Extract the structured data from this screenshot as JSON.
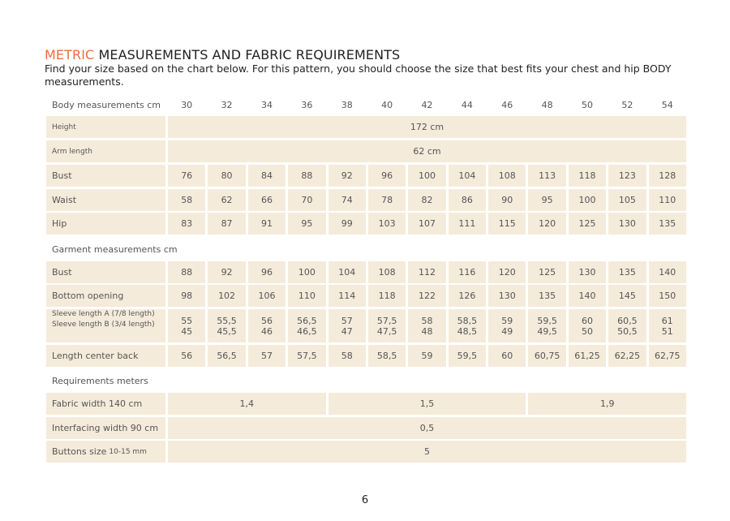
{
  "title": {
    "accent": "METRIC",
    "rest": " MEASUREMENTS AND FABRIC REQUIREMENTS"
  },
  "intro": "Find your size based on the chart below. For this pattern, you should choose the size that best fits your chest and hip BODY measurements.",
  "sizes": [
    "30",
    "32",
    "34",
    "36",
    "38",
    "40",
    "42",
    "44",
    "46",
    "48",
    "50",
    "52",
    "54"
  ],
  "sections": {
    "body": "Body measurements cm",
    "garment": "Garment measurements cm",
    "requirements": "Requirements meters"
  },
  "body_rows": [
    {
      "label": "Height",
      "span": "172 cm"
    },
    {
      "label": "Arm length",
      "span": "62 cm"
    },
    {
      "label": "Bust",
      "values": [
        "76",
        "80",
        "84",
        "88",
        "92",
        "96",
        "100",
        "104",
        "108",
        "113",
        "118",
        "123",
        "128"
      ]
    },
    {
      "label": "Waist",
      "values": [
        "58",
        "62",
        "66",
        "70",
        "74",
        "78",
        "82",
        "86",
        "90",
        "95",
        "100",
        "105",
        "110"
      ]
    },
    {
      "label": "Hip",
      "values": [
        "83",
        "87",
        "91",
        "95",
        "99",
        "103",
        "107",
        "111",
        "115",
        "120",
        "125",
        "130",
        "135"
      ]
    }
  ],
  "garment_rows": [
    {
      "label": "Bust",
      "values": [
        "88",
        "92",
        "96",
        "100",
        "104",
        "108",
        "112",
        "116",
        "120",
        "125",
        "130",
        "135",
        "140"
      ]
    },
    {
      "label": "Bottom opening",
      "values": [
        "98",
        "102",
        "106",
        "110",
        "114",
        "118",
        "122",
        "126",
        "130",
        "135",
        "140",
        "145",
        "150"
      ]
    },
    {
      "label": "Sleeve length  A (7/8 length)",
      "label2": "Sleeve length B (3/4 length)",
      "values": [
        "55",
        "55,5",
        "56",
        "56,5",
        "57",
        "57,5",
        "58",
        "58,5",
        "59",
        "59,5",
        "60",
        "60,5",
        "61"
      ],
      "values2": [
        "45",
        "45,5",
        "46",
        "46,5",
        "47",
        "47,5",
        "48",
        "48,5",
        "49",
        "49,5",
        "50",
        "50,5",
        "51"
      ]
    },
    {
      "label": "Length center back",
      "values": [
        "56",
        "56,5",
        "57",
        "57,5",
        "58",
        "58,5",
        "59",
        "59,5",
        "60",
        "60,75",
        "61,25",
        "62,25",
        "62,75"
      ]
    }
  ],
  "requirement_rows": [
    {
      "label": "Fabric width 140 cm",
      "groups": [
        {
          "value": "1,4",
          "cols": 4
        },
        {
          "value": "1,5",
          "cols": 5
        },
        {
          "value": "1,9",
          "cols": 4
        }
      ]
    },
    {
      "label": "Interfacing width 90 cm",
      "span": "0,5"
    },
    {
      "label": "Buttons size ",
      "label_small": "10-15 mm",
      "span": "5"
    }
  ],
  "page_number": "6"
}
